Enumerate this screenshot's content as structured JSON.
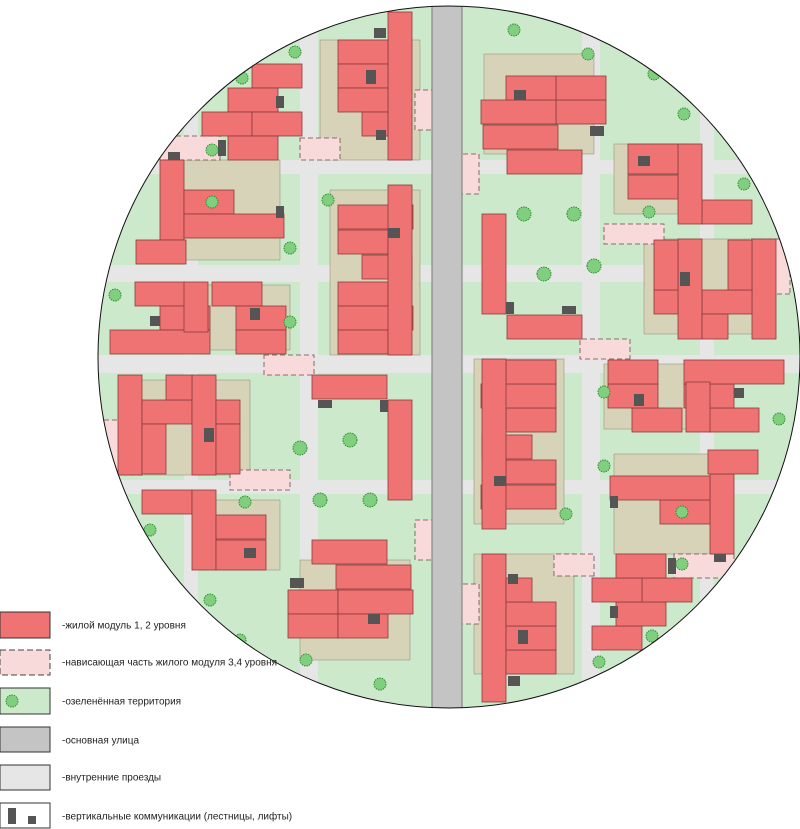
{
  "legend": {
    "items": [
      {
        "label": "-жилой модуль 1, 2 уровня"
      },
      {
        "label": "-нависающая часть жилого модуля 3,4 уровня"
      },
      {
        "label": "-озеленённая территория"
      },
      {
        "label": "-основная улица"
      },
      {
        "label": "-внутренние проезды"
      },
      {
        "label": "-вертикальные коммуникации (лестницы, лифты)"
      }
    ]
  }
}
